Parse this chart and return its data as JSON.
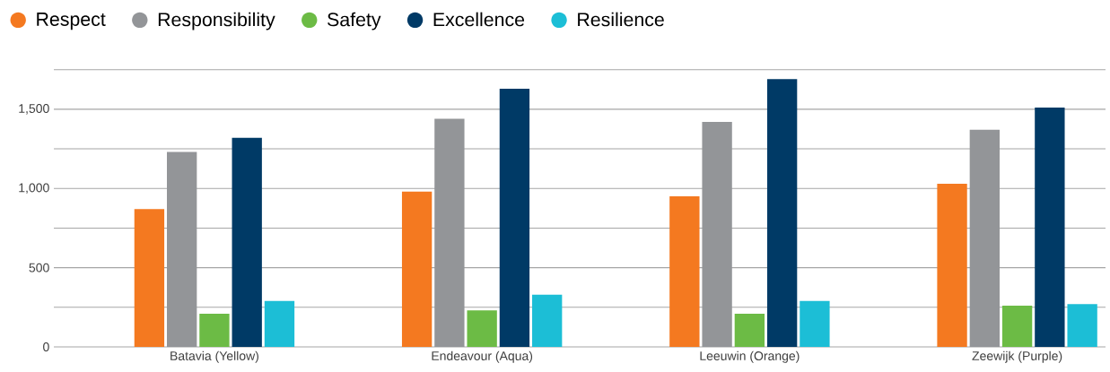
{
  "chart_data": {
    "type": "bar",
    "categories": [
      "Batavia (Yellow)",
      "Endeavour (Aqua)",
      "Leeuwin (Orange)",
      "Zeewijk (Purple)"
    ],
    "series": [
      {
        "name": "Respect",
        "color": "#f47920",
        "values": [
          870,
          980,
          950,
          1030
        ]
      },
      {
        "name": "Responsibility",
        "color": "#939598",
        "values": [
          1230,
          1440,
          1420,
          1370
        ]
      },
      {
        "name": "Safety",
        "color": "#6cbb45",
        "values": [
          210,
          230,
          210,
          260
        ]
      },
      {
        "name": "Excellence",
        "color": "#003a66",
        "values": [
          1320,
          1630,
          1690,
          1510
        ]
      },
      {
        "name": "Resilience",
        "color": "#1cbed6",
        "values": [
          290,
          330,
          290,
          270
        ]
      }
    ],
    "yticks": [
      0,
      {
        "value": 250,
        "label": null
      },
      500,
      {
        "value": 750,
        "label": null
      },
      {
        "value": 1000,
        "label": "1,000"
      },
      {
        "value": 1250,
        "label": null
      },
      {
        "value": 1500,
        "label": "1,500"
      },
      {
        "value": 1750,
        "label": null
      }
    ],
    "ylim": [
      0,
      1750
    ],
    "grid": "y",
    "legend": "top"
  }
}
